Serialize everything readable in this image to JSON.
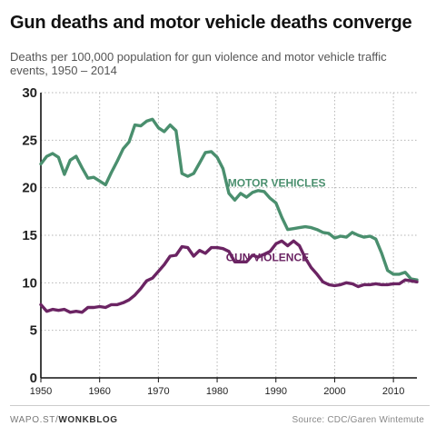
{
  "header": {
    "title": "Gun deaths and motor vehicle deaths converge",
    "subtitle": "Deaths per 100,000 population for gun violence and motor vehicle traffic events, 1950 – 2014"
  },
  "footer": {
    "source_prefix": "WAPO.ST/",
    "source_brand": "WONKBLOG",
    "credit": "Source: CDC/Garen Wintemute"
  },
  "colors": {
    "motor": "#4a8f6e",
    "gun": "#6b2463",
    "grid": "#b5b5b5",
    "axis": "#111111"
  },
  "chart_data": {
    "type": "line",
    "title": "Gun deaths and motor vehicle deaths converge",
    "subtitle": "Deaths per 100,000 population for gun violence and motor vehicle traffic events, 1950 – 2014",
    "xlim": [
      1950,
      2014
    ],
    "ylim": [
      0,
      30
    ],
    "x_ticks": [
      1950,
      1960,
      1970,
      1980,
      1990,
      2000,
      2010
    ],
    "y_ticks": [
      0,
      5,
      10,
      15,
      20,
      25,
      30
    ],
    "grid": "horizontal dotted",
    "series": [
      {
        "name": "MOTOR VEHICLES",
        "color": "#4a8f6e",
        "x": [
          1950,
          1951,
          1952,
          1953,
          1954,
          1955,
          1956,
          1957,
          1958,
          1959,
          1960,
          1961,
          1962,
          1963,
          1964,
          1965,
          1966,
          1967,
          1968,
          1969,
          1970,
          1971,
          1972,
          1973,
          1974,
          1975,
          1976,
          1977,
          1978,
          1979,
          1980,
          1981,
          1982,
          1983,
          1984,
          1985,
          1986,
          1987,
          1988,
          1989,
          1990,
          1991,
          1992,
          1993,
          1994,
          1995,
          1996,
          1997,
          1998,
          1999,
          2000,
          2001,
          2002,
          2003,
          2004,
          2005,
          2006,
          2007,
          2008,
          2009,
          2010,
          2011,
          2012,
          2013,
          2014
        ],
        "values": [
          22.5,
          23.3,
          23.6,
          23.2,
          21.4,
          22.9,
          23.3,
          22.1,
          21.0,
          21.1,
          20.7,
          20.3,
          21.6,
          22.8,
          24.1,
          24.8,
          26.6,
          26.5,
          27.0,
          27.2,
          26.3,
          25.9,
          26.6,
          26.0,
          21.5,
          21.2,
          21.5,
          22.6,
          23.7,
          23.8,
          23.2,
          22.0,
          19.4,
          18.7,
          19.4,
          19.0,
          19.5,
          19.7,
          19.6,
          18.9,
          18.4,
          16.9,
          15.6,
          15.7,
          15.8,
          15.9,
          15.8,
          15.6,
          15.3,
          15.2,
          14.7,
          14.9,
          14.8,
          15.3,
          15.0,
          14.8,
          14.9,
          14.6,
          13.1,
          11.3,
          10.9,
          10.9,
          11.1,
          10.4,
          10.3
        ]
      },
      {
        "name": "GUN VIOLENCE",
        "color": "#6b2463",
        "x": [
          1950,
          1951,
          1952,
          1953,
          1954,
          1955,
          1956,
          1957,
          1958,
          1959,
          1960,
          1961,
          1962,
          1963,
          1964,
          1965,
          1966,
          1967,
          1968,
          1969,
          1970,
          1971,
          1972,
          1973,
          1974,
          1975,
          1976,
          1977,
          1978,
          1979,
          1980,
          1981,
          1982,
          1983,
          1984,
          1985,
          1986,
          1987,
          1988,
          1989,
          1990,
          1991,
          1992,
          1993,
          1994,
          1995,
          1996,
          1997,
          1998,
          1999,
          2000,
          2001,
          2002,
          2003,
          2004,
          2005,
          2006,
          2007,
          2008,
          2009,
          2010,
          2011,
          2012,
          2013,
          2014
        ],
        "values": [
          7.7,
          7.0,
          7.2,
          7.1,
          7.2,
          6.9,
          7.0,
          6.9,
          7.4,
          7.4,
          7.5,
          7.4,
          7.7,
          7.7,
          7.9,
          8.2,
          8.7,
          9.4,
          10.2,
          10.5,
          11.2,
          11.9,
          12.8,
          12.9,
          13.8,
          13.7,
          12.8,
          13.4,
          13.1,
          13.7,
          13.7,
          13.6,
          13.3,
          12.2,
          12.2,
          12.2,
          12.9,
          12.7,
          13.0,
          13.3,
          14.1,
          14.4,
          13.9,
          14.4,
          13.9,
          12.6,
          11.6,
          10.9,
          10.1,
          9.8,
          9.7,
          9.8,
          10.0,
          9.9,
          9.6,
          9.8,
          9.8,
          9.9,
          9.8,
          9.8,
          9.9,
          9.9,
          10.3,
          10.2,
          10.1
        ]
      }
    ]
  }
}
